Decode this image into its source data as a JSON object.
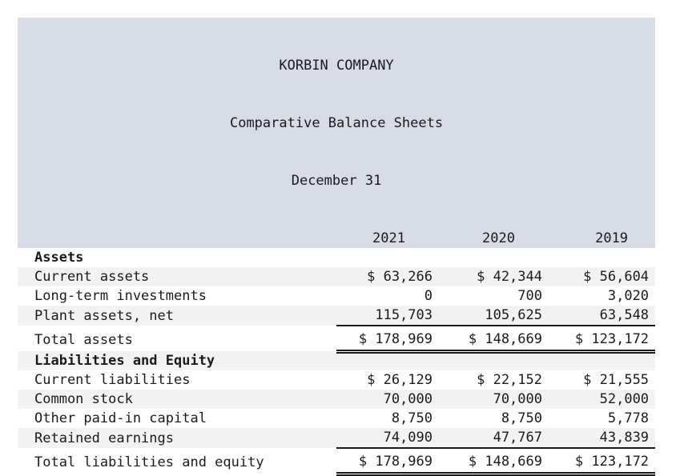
{
  "header": {
    "company": "KORBIN COMPANY",
    "subtitle": "Comparative Balance Sheets",
    "date_line": "December 31",
    "years": [
      "2021",
      "2020",
      "2019"
    ]
  },
  "colors": {
    "header_bg": "#d6dbe5",
    "stripe_bg": "#f2f2f2",
    "text": "#1b1b1b",
    "rule": "#1b1b1b"
  },
  "sections": [
    {
      "heading": "Assets",
      "rows": [
        {
          "label": "Current assets",
          "values": [
            "$ 63,266",
            "$ 42,344",
            "$ 56,604"
          ]
        },
        {
          "label": "Long-term investments",
          "values": [
            "0",
            "700",
            "3,020"
          ]
        },
        {
          "label": "Plant assets, net",
          "values": [
            "115,703",
            "105,625",
            "63,548"
          ]
        }
      ],
      "total": {
        "label": "Total assets",
        "values": [
          "$ 178,969",
          "$ 148,669",
          "$ 123,172"
        ]
      }
    },
    {
      "heading": "Liabilities and Equity",
      "rows": [
        {
          "label": "Current liabilities",
          "values": [
            "$ 26,129",
            "$ 22,152",
            "$ 21,555"
          ]
        },
        {
          "label": "Common stock",
          "values": [
            "70,000",
            "70,000",
            "52,000"
          ]
        },
        {
          "label": "Other paid-in capital",
          "values": [
            "8,750",
            "8,750",
            "5,778"
          ]
        },
        {
          "label": "Retained earnings",
          "values": [
            "74,090",
            "47,767",
            "43,839"
          ]
        }
      ],
      "total": {
        "label": "Total liabilities and equity",
        "values": [
          "$ 178,969",
          "$ 148,669",
          "$ 123,172"
        ]
      }
    }
  ]
}
